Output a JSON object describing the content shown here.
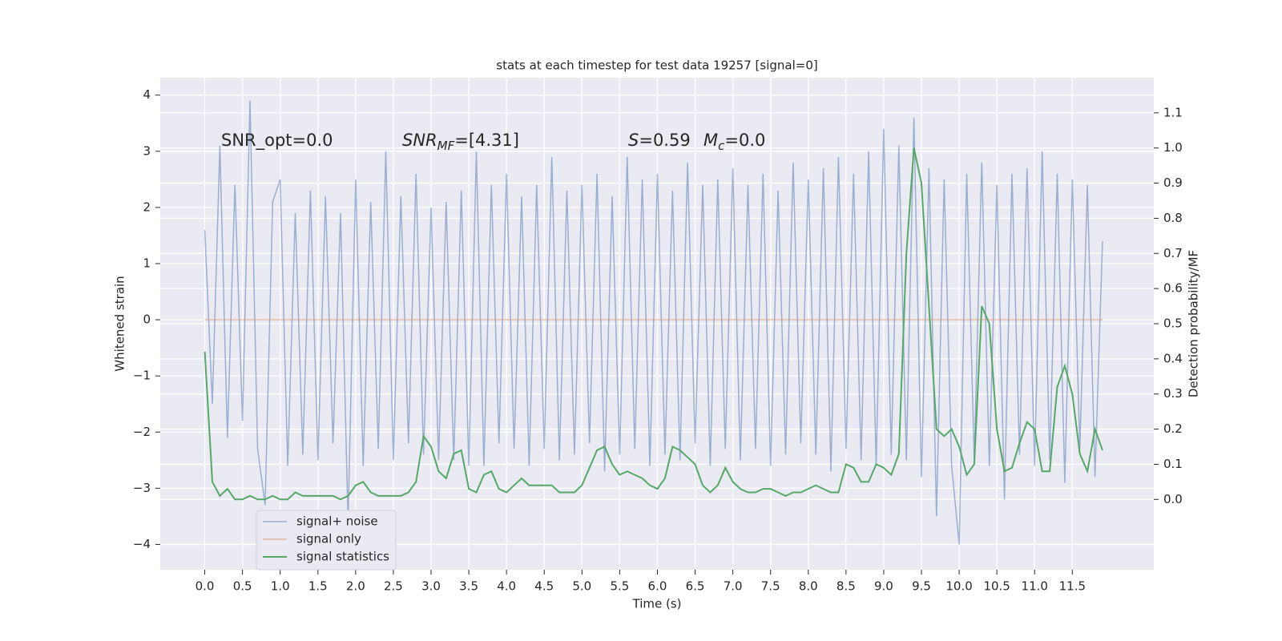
{
  "chart_data": {
    "type": "line",
    "title": "stats at each timestep for test data 19257 [signal=0]",
    "xlabel": "Time (s)",
    "ylabel": "Whitened strain",
    "y2label": "Detection probability/MF",
    "annotations": [
      {
        "text": "SNR_opt=0.0"
      },
      {
        "base": "SNR",
        "sub": "MF",
        "rest": "=[4.31]"
      },
      {
        "base": "S",
        "rest": "=0.59"
      },
      {
        "base": "M",
        "sub": "c",
        "rest": "=0.0"
      }
    ],
    "legend": "lower left",
    "grid": true,
    "xlim": [
      -0.59,
      12.58
    ],
    "ylim": [
      -4.45,
      4.31
    ],
    "y2lim": [
      -0.2,
      1.2
    ],
    "xticks": [
      {
        "value": 0,
        "label": "0.0"
      },
      0.5,
      {
        "value": 1,
        "label": "1.0"
      },
      1.5,
      {
        "value": 2,
        "label": "2.0"
      },
      2.5,
      {
        "value": 3,
        "label": "3.0"
      },
      3.5,
      {
        "value": 4,
        "label": "4.0"
      },
      4.5,
      {
        "value": 5,
        "label": "5.0"
      },
      5.5,
      {
        "value": 6,
        "label": "6.0"
      },
      6.5,
      {
        "value": 7,
        "label": "7.0"
      },
      7.5,
      {
        "value": 8,
        "label": "8.0"
      },
      8.5,
      {
        "value": 9,
        "label": "9.0"
      },
      9.5,
      {
        "value": 10,
        "label": "10.0"
      },
      10.5,
      {
        "value": 11,
        "label": "11.0"
      },
      11.5
    ],
    "yticks": [
      {
        "value": -4,
        "label": "−4"
      },
      {
        "value": -3,
        "label": "−3"
      },
      {
        "value": -2,
        "label": "−2"
      },
      {
        "value": -1,
        "label": "−1"
      },
      0,
      1,
      2,
      3,
      4
    ],
    "y2ticks": [
      {
        "value": 0,
        "label": "0.0"
      },
      0.1,
      0.2,
      0.3,
      0.4,
      0.5,
      0.6,
      0.7,
      0.8,
      0.9,
      {
        "value": 1,
        "label": "1.0"
      },
      1.1
    ],
    "x": [
      0,
      0.1,
      0.2,
      0.3,
      0.4,
      0.5,
      0.6,
      0.7,
      0.8,
      0.9,
      1,
      1.1,
      1.2,
      1.3,
      1.4,
      1.5,
      1.6,
      1.7,
      1.8,
      1.9,
      2,
      2.1,
      2.2,
      2.3,
      2.4,
      2.5,
      2.6,
      2.7,
      2.8,
      2.9,
      3,
      3.1,
      3.2,
      3.3,
      3.4,
      3.5,
      3.6,
      3.7,
      3.8,
      3.9,
      4,
      4.1,
      4.2,
      4.3,
      4.4,
      4.5,
      4.6,
      4.7,
      4.8,
      4.9,
      5,
      5.1,
      5.2,
      5.3,
      5.4,
      5.5,
      5.6,
      5.7,
      5.8,
      5.9,
      6,
      6.1,
      6.2,
      6.3,
      6.4,
      6.5,
      6.6,
      6.7,
      6.8,
      6.9,
      7,
      7.1,
      7.2,
      7.3,
      7.4,
      7.5,
      7.6,
      7.7,
      7.8,
      7.9,
      8,
      8.1,
      8.2,
      8.3,
      8.4,
      8.5,
      8.6,
      8.7,
      8.8,
      8.9,
      9,
      9.1,
      9.2,
      9.3,
      9.4,
      9.5,
      9.6,
      9.7,
      9.8,
      9.9,
      10,
      10.1,
      10.2,
      10.3,
      10.4,
      10.5,
      10.6,
      10.7,
      10.8,
      10.9,
      11,
      11.1,
      11.2,
      11.3,
      11.4,
      11.5,
      11.6,
      11.7,
      11.8,
      11.9
    ],
    "series": [
      {
        "name": "signal+ noise",
        "color": "#4c72b0",
        "values": [
          1.6,
          -1.5,
          3.1,
          -2.1,
          2.4,
          -1.8,
          3.9,
          -2.3,
          -3.3,
          2.1,
          2.5,
          -2.6,
          1.9,
          -2.4,
          2.3,
          -2.5,
          2.2,
          -2.2,
          1.9,
          -3.6,
          2.5,
          -2.6,
          2.1,
          -2.3,
          3.0,
          -2.5,
          2.2,
          -2.2,
          2.6,
          -2.4,
          2.0,
          -2.5,
          2.1,
          -2.5,
          2.3,
          -2.6,
          3.0,
          -2.6,
          2.4,
          -2.2,
          2.6,
          -2.3,
          2.2,
          -2.6,
          2.4,
          -2.3,
          2.9,
          -2.5,
          2.3,
          -2.4,
          2.4,
          -2.2,
          2.6,
          -2.7,
          2.2,
          -2.4,
          2.9,
          -2.3,
          2.5,
          -2.6,
          2.6,
          -2.4,
          2.3,
          -2.5,
          2.8,
          -2.2,
          2.4,
          -2.6,
          2.5,
          -2.3,
          2.7,
          -2.5,
          2.4,
          -2.3,
          2.6,
          -2.6,
          2.3,
          -2.4,
          2.8,
          -2.2,
          2.5,
          -2.4,
          2.7,
          -2.7,
          2.9,
          -2.3,
          2.6,
          -2.5,
          3.0,
          -2.6,
          3.4,
          -2.4,
          3.1,
          -2.5,
          3.6,
          -2.8,
          2.7,
          -3.5,
          2.5,
          -2.6,
          -4.0,
          2.6,
          -2.5,
          2.8,
          -2.6,
          2.4,
          -3.2,
          2.6,
          -2.4,
          2.7,
          -2.6,
          3.0,
          -2.5,
          2.6,
          -2.9,
          2.5,
          -2.3,
          2.4,
          -2.8,
          1.4
        ]
      },
      {
        "name": "signal only",
        "color": "#dd8452",
        "values": [
          0,
          0,
          0,
          0,
          0,
          0,
          0,
          0,
          0,
          0,
          0,
          0,
          0,
          0,
          0,
          0,
          0,
          0,
          0,
          0,
          0,
          0,
          0,
          0,
          0,
          0,
          0,
          0,
          0,
          0,
          0,
          0,
          0,
          0,
          0,
          0,
          0,
          0,
          0,
          0,
          0,
          0,
          0,
          0,
          0,
          0,
          0,
          0,
          0,
          0,
          0,
          0,
          0,
          0,
          0,
          0,
          0,
          0,
          0,
          0,
          0,
          0,
          0,
          0,
          0,
          0,
          0,
          0,
          0,
          0,
          0,
          0,
          0,
          0,
          0,
          0,
          0,
          0,
          0,
          0,
          0,
          0,
          0,
          0,
          0,
          0,
          0,
          0,
          0,
          0,
          0,
          0,
          0,
          0,
          0,
          0,
          0,
          0,
          0,
          0,
          0,
          0,
          0,
          0,
          0,
          0,
          0,
          0,
          0,
          0,
          0,
          0,
          0,
          0,
          0,
          0,
          0,
          0,
          0,
          0
        ]
      },
      {
        "name": "signal statistics",
        "color": "#55a868",
        "axis": "y2",
        "values": [
          0.42,
          0.05,
          0.01,
          0.03,
          0,
          0,
          0.01,
          0,
          0,
          0.01,
          0,
          0,
          0.02,
          0.01,
          0.01,
          0.01,
          0.01,
          0.01,
          0,
          0.01,
          0.04,
          0.05,
          0.02,
          0.01,
          0.01,
          0.01,
          0.01,
          0.02,
          0.05,
          0.18,
          0.15,
          0.08,
          0.06,
          0.13,
          0.14,
          0.03,
          0.02,
          0.07,
          0.08,
          0.03,
          0.02,
          0.04,
          0.06,
          0.04,
          0.04,
          0.04,
          0.04,
          0.02,
          0.02,
          0.02,
          0.04,
          0.09,
          0.14,
          0.15,
          0.1,
          0.07,
          0.08,
          0.07,
          0.06,
          0.04,
          0.03,
          0.06,
          0.15,
          0.14,
          0.12,
          0.1,
          0.04,
          0.02,
          0.04,
          0.09,
          0.05,
          0.03,
          0.02,
          0.02,
          0.03,
          0.03,
          0.02,
          0.01,
          0.02,
          0.02,
          0.03,
          0.04,
          0.03,
          0.02,
          0.02,
          0.1,
          0.09,
          0.05,
          0.05,
          0.1,
          0.09,
          0.07,
          0.13,
          0.7,
          1.0,
          0.9,
          0.55,
          0.2,
          0.18,
          0.2,
          0.15,
          0.07,
          0.1,
          0.55,
          0.5,
          0.2,
          0.08,
          0.09,
          0.16,
          0.22,
          0.2,
          0.08,
          0.08,
          0.32,
          0.38,
          0.3,
          0.13,
          0.08,
          0.2,
          0.14
        ]
      }
    ]
  }
}
